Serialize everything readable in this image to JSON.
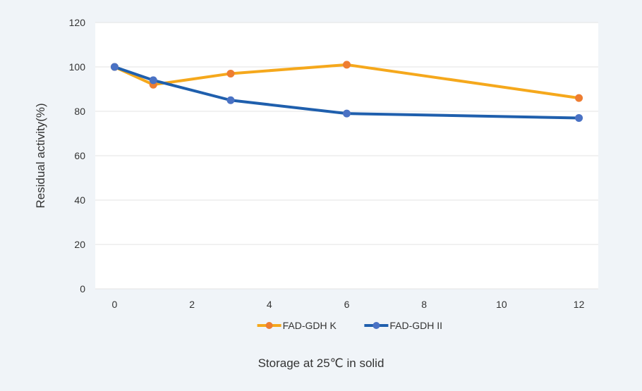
{
  "chart_data": {
    "type": "line",
    "title": "",
    "xlabel": "Storage at 25℃ in solid",
    "ylabel": "Residual activity(%)",
    "xlim": [
      -0.5,
      12.5
    ],
    "ylim": [
      0,
      120
    ],
    "xticks": [
      0,
      2,
      4,
      6,
      8,
      10,
      12
    ],
    "yticks": [
      0,
      20,
      40,
      60,
      80,
      100,
      120
    ],
    "grid": true,
    "legend_position": "bottom",
    "series": [
      {
        "name": "FAD-GDH K",
        "line_color": "#f5a81c",
        "marker_color": "#ee7d31",
        "x": [
          0,
          1,
          3,
          6,
          12
        ],
        "y": [
          100,
          92,
          97,
          101,
          86
        ]
      },
      {
        "name": "FAD-GDH II",
        "line_color": "#1f5fad",
        "marker_color": "#4a72c4",
        "x": [
          0,
          1,
          3,
          6,
          12
        ],
        "y": [
          100,
          94,
          85,
          79,
          77
        ]
      }
    ]
  },
  "colors": {
    "page_background": "#f0f4f8",
    "plot_background": "#ffffff",
    "gridline": "#e3e3e3",
    "text": "#333333"
  }
}
